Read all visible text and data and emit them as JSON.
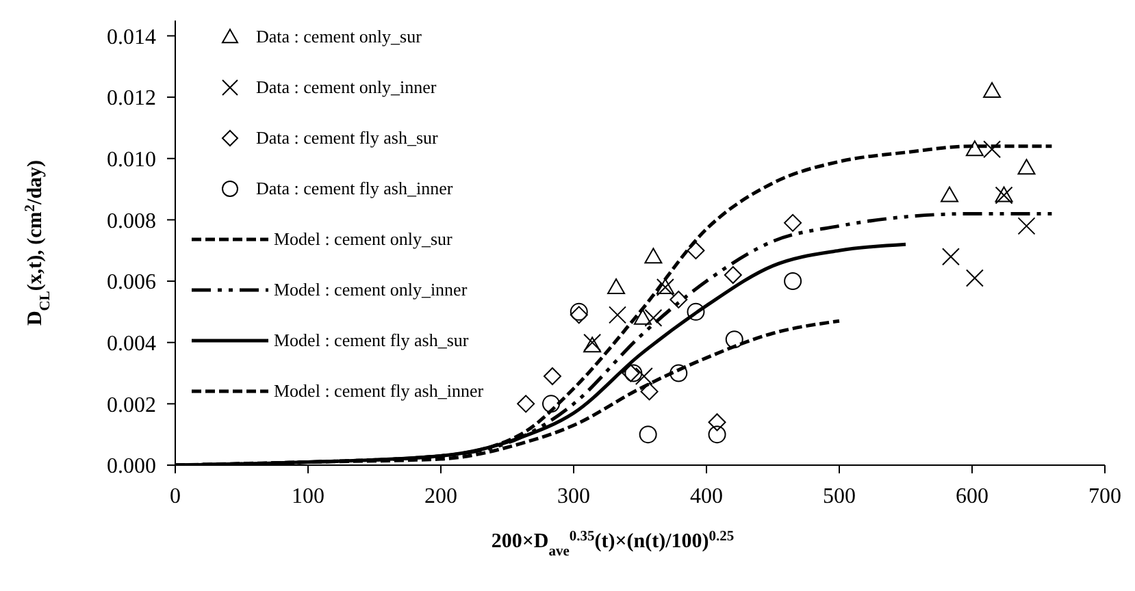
{
  "chart_data": {
    "type": "scatter",
    "xlabel": "200×D$_{ave}$$^{0.35}$(t)×(n(t)/100)$^{0.25}$",
    "ylabel": "D$_{CL}$(x,t), (cm$^{2}$/day)",
    "xlim": [
      0,
      700
    ],
    "xticks": [
      0,
      100,
      200,
      300,
      400,
      500,
      600,
      700
    ],
    "ylim": [
      0,
      0.0145
    ],
    "yticks": [
      {
        "value": 0,
        "label": "0.000"
      },
      {
        "value": 0.002,
        "label": "0.002"
      },
      {
        "value": 0.004,
        "label": "0.004"
      },
      {
        "value": 0.006,
        "label": "0.006"
      },
      {
        "value": 0.008,
        "label": "0.008"
      },
      {
        "value": 0.01,
        "label": "0.010"
      },
      {
        "value": 0.012,
        "label": "0.012"
      },
      {
        "value": 0.014,
        "label": "0.014"
      }
    ],
    "grid": false,
    "legend": "top left",
    "series": [
      {
        "name": "Data : cement only_sur",
        "type": "scatter",
        "marker": "triangle",
        "color": "#000000",
        "x": [
          360,
          332,
          352,
          369,
          314,
          615,
          602,
          641,
          583,
          624
        ],
        "values": [
          0.0068,
          0.0058,
          0.0048,
          0.0058,
          0.0039,
          0.0122,
          0.0103,
          0.0097,
          0.0088,
          0.0088
        ]
      },
      {
        "name": "Data : cement only_inner",
        "type": "scatter",
        "marker": "cross",
        "color": "#000000",
        "x": [
          333,
          369,
          360,
          314,
          353,
          615,
          624,
          641,
          584,
          602
        ],
        "values": [
          0.0049,
          0.0058,
          0.0048,
          0.004,
          0.0029,
          0.0103,
          0.0088,
          0.0078,
          0.0068,
          0.0061
        ]
      },
      {
        "name": "Data : cement fly ash_sur",
        "type": "scatter",
        "marker": "diamond",
        "color": "#000000",
        "x": [
          304,
          284,
          264,
          379,
          357,
          392,
          420,
          408,
          343,
          465
        ],
        "values": [
          0.0049,
          0.0029,
          0.002,
          0.0054,
          0.0024,
          0.007,
          0.0062,
          0.0014,
          0.003,
          0.0079
        ]
      },
      {
        "name": "Data : cement fly ash_inner",
        "type": "scatter",
        "marker": "circle",
        "color": "#000000",
        "x": [
          304,
          283,
          345,
          356,
          379,
          392,
          408,
          421,
          465
        ],
        "values": [
          0.005,
          0.002,
          0.003,
          0.001,
          0.003,
          0.005,
          0.001,
          0.0041,
          0.006
        ]
      },
      {
        "name": "Model : cement only_sur",
        "type": "line",
        "line_style": "dashed",
        "color": "#000000",
        "x": [
          0,
          100,
          200,
          260,
          300,
          350,
          400,
          450,
          500,
          550,
          600,
          660
        ],
        "values": [
          0,
          0.0001,
          0.0003,
          0.001,
          0.0025,
          0.005,
          0.0077,
          0.0092,
          0.0099,
          0.0102,
          0.0104,
          0.0104
        ]
      },
      {
        "name": "Model : cement only_inner",
        "type": "line",
        "line_style": "dotted",
        "color": "#000000",
        "x": [
          0,
          100,
          200,
          260,
          300,
          350,
          400,
          450,
          500,
          550,
          600,
          660
        ],
        "values": [
          0,
          0.0001,
          0.0003,
          0.0009,
          0.002,
          0.0042,
          0.006,
          0.0073,
          0.0078,
          0.0081,
          0.0082,
          0.0082
        ]
      },
      {
        "name": "Model : cement fly ash_sur",
        "type": "line",
        "line_style": "solid",
        "color": "#000000",
        "x": [
          0,
          100,
          200,
          260,
          300,
          350,
          400,
          450,
          500,
          550
        ],
        "values": [
          0,
          0.0001,
          0.0003,
          0.0009,
          0.0017,
          0.0036,
          0.0052,
          0.0065,
          0.007,
          0.0072
        ]
      },
      {
        "name": "Model : cement fly ash_inner",
        "type": "line",
        "line_style": "dashed",
        "color": "#000000",
        "x": [
          0,
          100,
          200,
          260,
          300,
          350,
          400,
          450,
          500
        ],
        "values": [
          0,
          0.0001,
          0.0002,
          0.0007,
          0.0013,
          0.0025,
          0.0035,
          0.0043,
          0.0047
        ]
      }
    ]
  }
}
